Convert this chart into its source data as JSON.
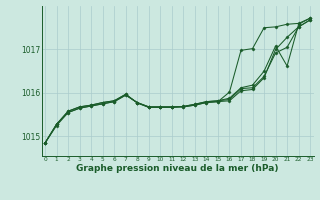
{
  "bg_color": "#cce8e0",
  "grid_color": "#aacccc",
  "line_color": "#1a5c2a",
  "marker_color": "#1a5c2a",
  "xlabel": "Graphe pression niveau de la mer (hPa)",
  "xlabel_fontsize": 6.5,
  "ylabel_ticks": [
    1015,
    1016,
    1017
  ],
  "xlim": [
    -0.3,
    23.3
  ],
  "ylim": [
    1014.55,
    1018.0
  ],
  "xticks": [
    0,
    1,
    2,
    3,
    4,
    5,
    6,
    7,
    8,
    9,
    10,
    11,
    12,
    13,
    14,
    15,
    16,
    17,
    18,
    19,
    20,
    21,
    22,
    23
  ],
  "series": [
    [
      1014.85,
      1015.25,
      1015.55,
      1015.65,
      1015.7,
      1015.75,
      1015.8,
      1015.95,
      1015.78,
      1015.68,
      1015.68,
      1015.68,
      1015.68,
      1015.72,
      1015.78,
      1015.8,
      1015.82,
      1016.05,
      1016.08,
      1016.35,
      1017.0,
      1017.28,
      1017.52,
      1017.68
    ],
    [
      1014.85,
      1015.28,
      1015.58,
      1015.68,
      1015.72,
      1015.78,
      1015.82,
      1015.97,
      1015.77,
      1015.67,
      1015.67,
      1015.67,
      1015.69,
      1015.74,
      1015.8,
      1015.82,
      1015.85,
      1016.1,
      1016.12,
      1016.38,
      1016.92,
      1017.05,
      1017.52,
      1017.68
    ],
    [
      1014.85,
      1015.28,
      1015.58,
      1015.68,
      1015.72,
      1015.78,
      1015.82,
      1015.97,
      1015.77,
      1015.67,
      1015.67,
      1015.67,
      1015.69,
      1015.74,
      1015.8,
      1015.82,
      1015.88,
      1016.12,
      1016.18,
      1016.5,
      1017.08,
      1016.62,
      1017.58,
      1017.72
    ],
    [
      1014.85,
      1015.28,
      1015.55,
      1015.65,
      1015.7,
      1015.75,
      1015.8,
      1015.95,
      1015.78,
      1015.68,
      1015.68,
      1015.68,
      1015.68,
      1015.72,
      1015.78,
      1015.8,
      1016.02,
      1016.98,
      1017.02,
      1017.5,
      1017.52,
      1017.58,
      1017.6,
      1017.72
    ]
  ]
}
